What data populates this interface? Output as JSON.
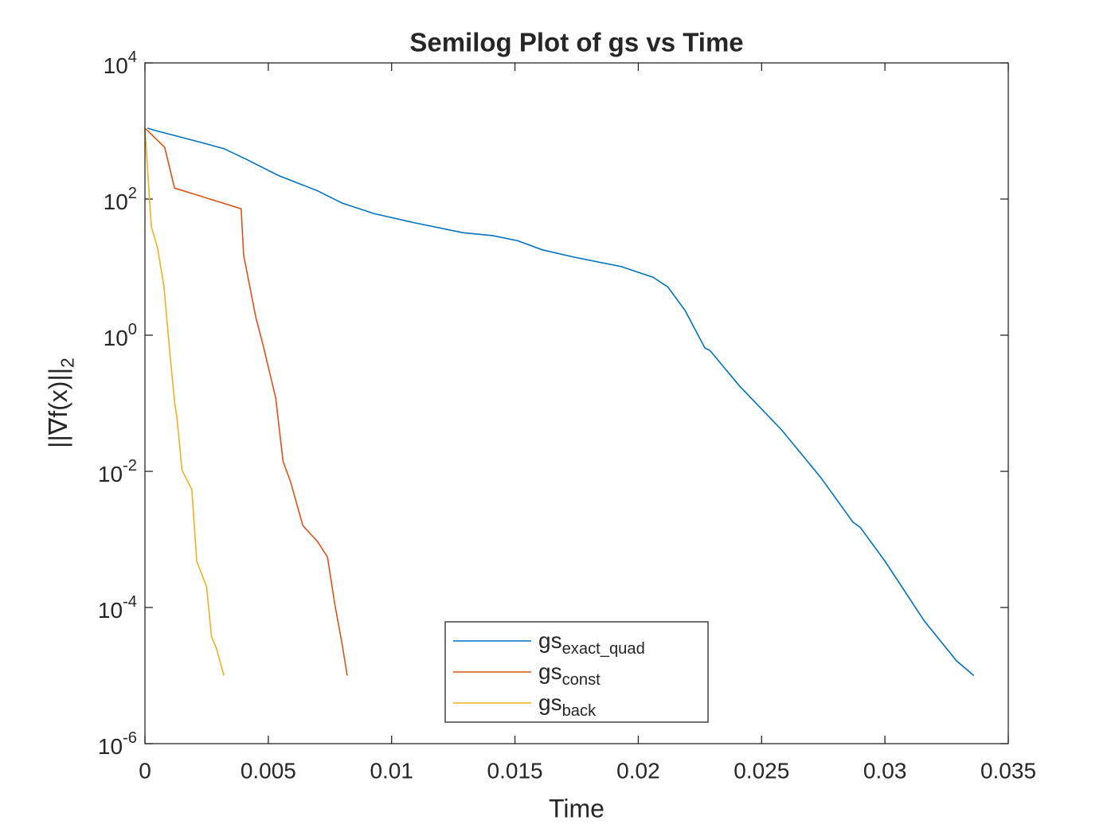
{
  "chart_data": {
    "type": "line",
    "title": "Semilog Plot of gs vs Time",
    "x_label": "Time",
    "y_label": "||∇f(x)||_2",
    "log_y": true,
    "legend_loc": "south",
    "xlim": [
      0,
      0.035
    ],
    "xticks": [
      0,
      0.005,
      0.01,
      0.015,
      0.02,
      0.025,
      0.03,
      0.035
    ],
    "ylim": [
      1e-06,
      10000
    ],
    "yticks": [
      {
        "value": 1e-06,
        "label": "10^-6"
      },
      {
        "value": 0.0001,
        "label": "10^-4"
      },
      {
        "value": 0.01,
        "label": "10^-2"
      },
      {
        "value": 1,
        "label": "10^0"
      },
      {
        "value": 100,
        "label": "10^2"
      },
      {
        "value": 10000,
        "label": "10^4"
      }
    ],
    "series": [
      {
        "name": "gs_exact_quad",
        "color": "#0072BD",
        "x": [
          0.0001,
          0.00058,
          0.0022,
          0.0032,
          0.0041,
          0.0054,
          0.007,
          0.008,
          0.0093,
          0.0109,
          0.0129,
          0.0141,
          0.0151,
          0.0161,
          0.0174,
          0.0193,
          0.0206,
          0.0212,
          0.0219,
          0.0227,
          0.0229,
          0.0241,
          0.0258,
          0.0274,
          0.0287,
          0.029,
          0.03,
          0.0316,
          0.0329,
          0.0336
        ],
        "values": [
          1100,
          980,
          690,
          550,
          385,
          223,
          132,
          87,
          61,
          45,
          32,
          29,
          24.5,
          18,
          14,
          10.2,
          7.1,
          5.1,
          2.3,
          0.65,
          0.6,
          0.18,
          0.041,
          0.0081,
          0.0018,
          0.0015,
          0.00048,
          6.3e-05,
          1.65e-05,
          1e-05
        ]
      },
      {
        "name": "gs_const",
        "color": "#D95319",
        "x": [
          0,
          0.0008,
          0.0012,
          0.0039,
          0.004,
          0.0045,
          0.0048,
          0.0053,
          0.0056,
          0.0059,
          0.0064,
          0.007,
          0.0074,
          0.0077,
          0.008,
          0.0082
        ],
        "values": [
          1100,
          575,
          145,
          72,
          15,
          1.8,
          0.69,
          0.12,
          0.014,
          0.0071,
          0.0016,
          0.00093,
          0.00055,
          0.00011,
          2.8e-05,
          1e-05
        ]
      },
      {
        "name": "gs_back",
        "color": "#EDB120",
        "x": [
          0,
          0.0001,
          0.00026,
          0.0005,
          0.00077,
          0.001,
          0.0012,
          0.0013,
          0.0015,
          0.0019,
          0.0021,
          0.0025,
          0.0027,
          0.0029,
          0.0032
        ],
        "values": [
          1100,
          295,
          39,
          20,
          5.2,
          0.6,
          0.105,
          0.06,
          0.0105,
          0.0054,
          0.00048,
          0.0002,
          3.7e-05,
          2.5e-05,
          1e-05
        ]
      }
    ]
  }
}
